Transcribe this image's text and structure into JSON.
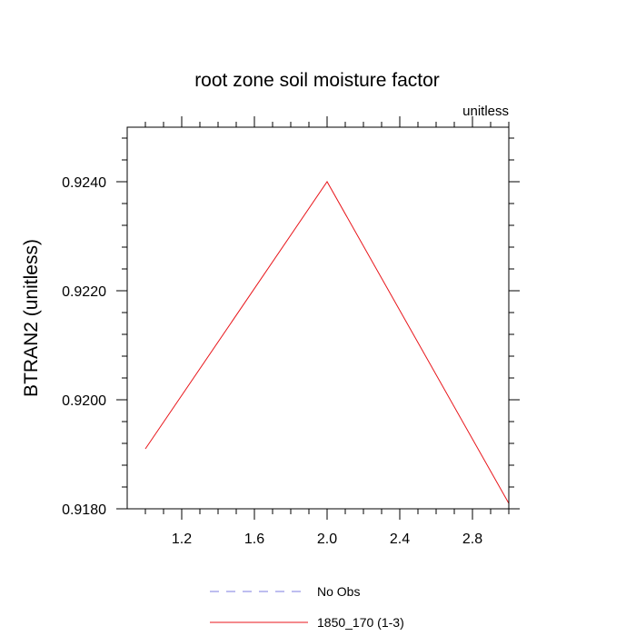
{
  "chart_data": {
    "type": "line",
    "title": "root zone soil moisture factor",
    "units_label": "unitless",
    "ylabel": "BTRAN2  (unitless)",
    "xlabel": "",
    "xlim": [
      0.9,
      3.0
    ],
    "ylim": [
      0.918,
      0.925
    ],
    "x_ticks": [
      1.2,
      1.6,
      2.0,
      2.4,
      2.8
    ],
    "x_tick_labels": [
      "1.2",
      "1.6",
      "2.0",
      "2.4",
      "2.8"
    ],
    "y_ticks": [
      0.918,
      0.92,
      0.922,
      0.924
    ],
    "y_tick_labels": [
      "0.9180",
      "0.9200",
      "0.9220",
      "0.9240"
    ],
    "y_minor_step": 0.0004,
    "x_minor_step": 0.1,
    "series": [
      {
        "name": "1850_170 (1-3)",
        "color": "#e8161b",
        "style": "solid",
        "x": [
          1.0,
          2.0,
          3.0
        ],
        "y": [
          0.9191,
          0.924,
          0.9181
        ]
      }
    ],
    "legend": [
      {
        "label": "No Obs",
        "color": "#7e7ee0",
        "style": "dashed"
      },
      {
        "label": "1850_170 (1-3)",
        "color": "#e8161b",
        "style": "solid"
      }
    ],
    "legend_placement": "bottom-center",
    "grid": false
  }
}
